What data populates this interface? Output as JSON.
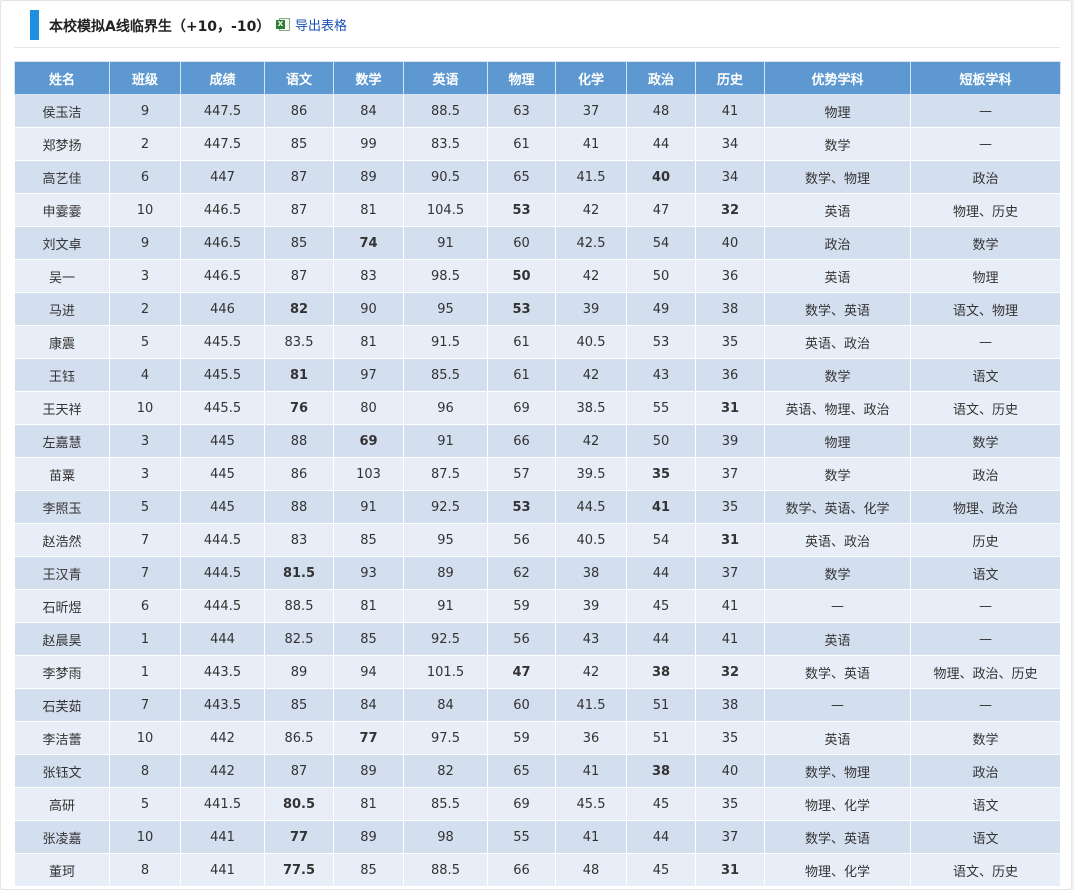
{
  "header": {
    "title": "本校模拟A线临界生（+10，-10）",
    "export_label": "导出表格",
    "export_icon": "excel-icon"
  },
  "colors": {
    "accent": "#1e90e0",
    "header_bg": "#5d99d0",
    "row_odd": "#d3deef",
    "row_even": "#e8eef7",
    "low_score": "#e02020"
  },
  "table": {
    "columns": [
      "姓名",
      "班级",
      "成绩",
      "语文",
      "数学",
      "英语",
      "物理",
      "化学",
      "政治",
      "历史",
      "优势学科",
      "短板学科"
    ],
    "rows": [
      {
        "cells": [
          "侯玉洁",
          "9",
          "447.5",
          "86",
          "84",
          "88.5",
          "63",
          "37",
          "48",
          "41",
          "物理",
          "—"
        ],
        "low": []
      },
      {
        "cells": [
          "郑梦扬",
          "2",
          "447.5",
          "85",
          "99",
          "83.5",
          "61",
          "41",
          "44",
          "34",
          "数学",
          "—"
        ],
        "low": []
      },
      {
        "cells": [
          "高艺佳",
          "6",
          "447",
          "87",
          "89",
          "90.5",
          "65",
          "41.5",
          "40",
          "34",
          "数学、物理",
          "政治"
        ],
        "low": [
          8
        ]
      },
      {
        "cells": [
          "申霎霎",
          "10",
          "446.5",
          "87",
          "81",
          "104.5",
          "53",
          "42",
          "47",
          "32",
          "英语",
          "物理、历史"
        ],
        "low": [
          6,
          9
        ]
      },
      {
        "cells": [
          "刘文卓",
          "9",
          "446.5",
          "85",
          "74",
          "91",
          "60",
          "42.5",
          "54",
          "40",
          "政治",
          "数学"
        ],
        "low": [
          4
        ]
      },
      {
        "cells": [
          "吴一",
          "3",
          "446.5",
          "87",
          "83",
          "98.5",
          "50",
          "42",
          "50",
          "36",
          "英语",
          "物理"
        ],
        "low": [
          6
        ]
      },
      {
        "cells": [
          "马进",
          "2",
          "446",
          "82",
          "90",
          "95",
          "53",
          "39",
          "49",
          "38",
          "数学、英语",
          "语文、物理"
        ],
        "low": [
          3,
          6
        ]
      },
      {
        "cells": [
          "康震",
          "5",
          "445.5",
          "83.5",
          "81",
          "91.5",
          "61",
          "40.5",
          "53",
          "35",
          "英语、政治",
          "—"
        ],
        "low": []
      },
      {
        "cells": [
          "王钰",
          "4",
          "445.5",
          "81",
          "97",
          "85.5",
          "61",
          "42",
          "43",
          "36",
          "数学",
          "语文"
        ],
        "low": [
          3
        ]
      },
      {
        "cells": [
          "王天祥",
          "10",
          "445.5",
          "76",
          "80",
          "96",
          "69",
          "38.5",
          "55",
          "31",
          "英语、物理、政治",
          "语文、历史"
        ],
        "low": [
          3,
          9
        ]
      },
      {
        "cells": [
          "左嘉慧",
          "3",
          "445",
          "88",
          "69",
          "91",
          "66",
          "42",
          "50",
          "39",
          "物理",
          "数学"
        ],
        "low": [
          4
        ]
      },
      {
        "cells": [
          "苗粟",
          "3",
          "445",
          "86",
          "103",
          "87.5",
          "57",
          "39.5",
          "35",
          "37",
          "数学",
          "政治"
        ],
        "low": [
          8
        ]
      },
      {
        "cells": [
          "李照玉",
          "5",
          "445",
          "88",
          "91",
          "92.5",
          "53",
          "44.5",
          "41",
          "35",
          "数学、英语、化学",
          "物理、政治"
        ],
        "low": [
          6,
          8
        ]
      },
      {
        "cells": [
          "赵浩然",
          "7",
          "444.5",
          "83",
          "85",
          "95",
          "56",
          "40.5",
          "54",
          "31",
          "英语、政治",
          "历史"
        ],
        "low": [
          9
        ]
      },
      {
        "cells": [
          "王汉青",
          "7",
          "444.5",
          "81.5",
          "93",
          "89",
          "62",
          "38",
          "44",
          "37",
          "数学",
          "语文"
        ],
        "low": [
          3
        ]
      },
      {
        "cells": [
          "石昕煜",
          "6",
          "444.5",
          "88.5",
          "81",
          "91",
          "59",
          "39",
          "45",
          "41",
          "—",
          "—"
        ],
        "low": []
      },
      {
        "cells": [
          "赵晨昊",
          "1",
          "444",
          "82.5",
          "85",
          "92.5",
          "56",
          "43",
          "44",
          "41",
          "英语",
          "—"
        ],
        "low": []
      },
      {
        "cells": [
          "李梦雨",
          "1",
          "443.5",
          "89",
          "94",
          "101.5",
          "47",
          "42",
          "38",
          "32",
          "数学、英语",
          "物理、政治、历史"
        ],
        "low": [
          6,
          8,
          9
        ]
      },
      {
        "cells": [
          "石芙茹",
          "7",
          "443.5",
          "85",
          "84",
          "84",
          "60",
          "41.5",
          "51",
          "38",
          "—",
          "—"
        ],
        "low": []
      },
      {
        "cells": [
          "李洁蕾",
          "10",
          "442",
          "86.5",
          "77",
          "97.5",
          "59",
          "36",
          "51",
          "35",
          "英语",
          "数学"
        ],
        "low": [
          4
        ]
      },
      {
        "cells": [
          "张钰文",
          "8",
          "442",
          "87",
          "89",
          "82",
          "65",
          "41",
          "38",
          "40",
          "数学、物理",
          "政治"
        ],
        "low": [
          8
        ]
      },
      {
        "cells": [
          "高研",
          "5",
          "441.5",
          "80.5",
          "81",
          "85.5",
          "69",
          "45.5",
          "45",
          "35",
          "物理、化学",
          "语文"
        ],
        "low": [
          3
        ]
      },
      {
        "cells": [
          "张凌嘉",
          "10",
          "441",
          "77",
          "89",
          "98",
          "55",
          "41",
          "44",
          "37",
          "数学、英语",
          "语文"
        ],
        "low": [
          3
        ]
      },
      {
        "cells": [
          "董珂",
          "8",
          "441",
          "77.5",
          "85",
          "88.5",
          "66",
          "48",
          "45",
          "31",
          "物理、化学",
          "语文、历史"
        ],
        "low": [
          3,
          9
        ]
      }
    ]
  }
}
